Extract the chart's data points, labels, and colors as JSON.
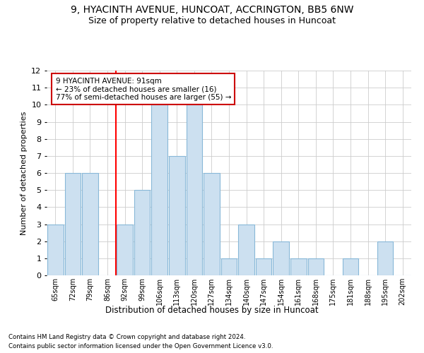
{
  "title": "9, HYACINTH AVENUE, HUNCOAT, ACCRINGTON, BB5 6NW",
  "subtitle": "Size of property relative to detached houses in Huncoat",
  "xlabel": "Distribution of detached houses by size in Huncoat",
  "ylabel": "Number of detached properties",
  "categories": [
    "65sqm",
    "72sqm",
    "79sqm",
    "86sqm",
    "92sqm",
    "99sqm",
    "106sqm",
    "113sqm",
    "120sqm",
    "127sqm",
    "134sqm",
    "140sqm",
    "147sqm",
    "154sqm",
    "161sqm",
    "168sqm",
    "175sqm",
    "181sqm",
    "188sqm",
    "195sqm",
    "202sqm"
  ],
  "values": [
    3,
    6,
    6,
    0,
    3,
    5,
    10,
    7,
    10,
    6,
    1,
    3,
    1,
    2,
    1,
    1,
    0,
    1,
    0,
    2,
    0
  ],
  "bar_color": "#cce0f0",
  "bar_edge_color": "#88b8d8",
  "red_line_index": 4,
  "ylim": [
    0,
    12
  ],
  "yticks": [
    0,
    1,
    2,
    3,
    4,
    5,
    6,
    7,
    8,
    9,
    10,
    11,
    12
  ],
  "annotation_line1": "9 HYACINTH AVENUE: 91sqm",
  "annotation_line2": "← 23% of detached houses are smaller (16)",
  "annotation_line3": "77% of semi-detached houses are larger (55) →",
  "footnote1": "Contains HM Land Registry data © Crown copyright and database right 2024.",
  "footnote2": "Contains public sector information licensed under the Open Government Licence v3.0.",
  "title_fontsize": 10,
  "subtitle_fontsize": 9,
  "annotation_box_color": "#ffffff",
  "annotation_box_edge": "#cc0000",
  "bg_color": "#ffffff",
  "grid_color": "#cccccc"
}
